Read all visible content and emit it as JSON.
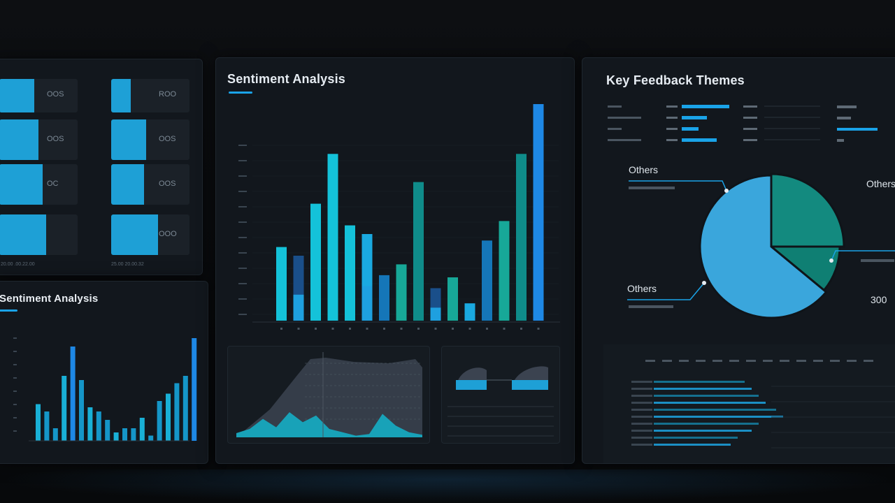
{
  "colors": {
    "accent": "#1aa3e8",
    "teal": "#14c2d9",
    "teal_dark": "#0f8c8a",
    "blue": "#1e88e5",
    "pie_light": "#3aa6dc",
    "pie_teal": "#138a7f",
    "panel": "#12171d"
  },
  "left_panel": {
    "tiles": [
      {
        "label": "OOS",
        "fill": 0.45
      },
      {
        "label": "ROO",
        "fill": 0.25
      },
      {
        "label": "OOS",
        "fill": 0.5
      },
      {
        "label": "OOS",
        "fill": 0.45
      },
      {
        "label": "OC",
        "fill": 0.55
      },
      {
        "label": "OOS",
        "fill": 0.42
      },
      {
        "label": "",
        "fill": 0.6
      },
      {
        "label": "OOO",
        "fill": 0.6
      }
    ],
    "footer_left": "20.00 .00.22.00",
    "footer_right": "25.00 20.00.32"
  },
  "bottom_left_panel": {
    "title": "Sentiment Analysis",
    "chart_data": {
      "type": "bar",
      "series": [
        {
          "values": [
            0.35,
            0.28,
            0.12,
            0.62,
            0.9,
            0.58,
            0.32,
            0.28,
            0.2,
            0.08,
            0.12,
            0.12,
            0.22,
            0.05,
            0.38,
            0.45,
            0.55,
            0.62,
            0.98
          ]
        }
      ],
      "ylim": [
        0,
        1
      ]
    }
  },
  "center_panel": {
    "title": "Sentiment Analysis",
    "chart_data": {
      "type": "bar",
      "series": [
        {
          "values": [
            0.34,
            0.3,
            0.54,
            0.77,
            0.44,
            0.4,
            0.21,
            0.26,
            0.64,
            0.15,
            0.2,
            0.08,
            0.37,
            0.46,
            0.77,
            1.0
          ]
        }
      ],
      "ylim": [
        0,
        1
      ]
    },
    "area_chart": {
      "type": "area",
      "values": [
        0.05,
        0.1,
        0.22,
        0.12,
        0.3,
        0.18,
        0.26,
        0.1,
        0.06,
        0.02,
        0.04,
        0.28,
        0.14,
        0.06,
        0.03
      ]
    }
  },
  "right_panel": {
    "title": "Key Feedback Themes",
    "chart_data": {
      "type": "pie",
      "slices": [
        {
          "value": 0.25,
          "color": "#138a7f"
        },
        {
          "value": 0.11,
          "color": "#0f7f73"
        },
        {
          "value": 0.64,
          "color": "#3aa6dc"
        }
      ]
    },
    "callouts": {
      "top_left": "Others",
      "top_right": "Others",
      "bottom_left": "Others",
      "bottom_right": "300"
    }
  }
}
